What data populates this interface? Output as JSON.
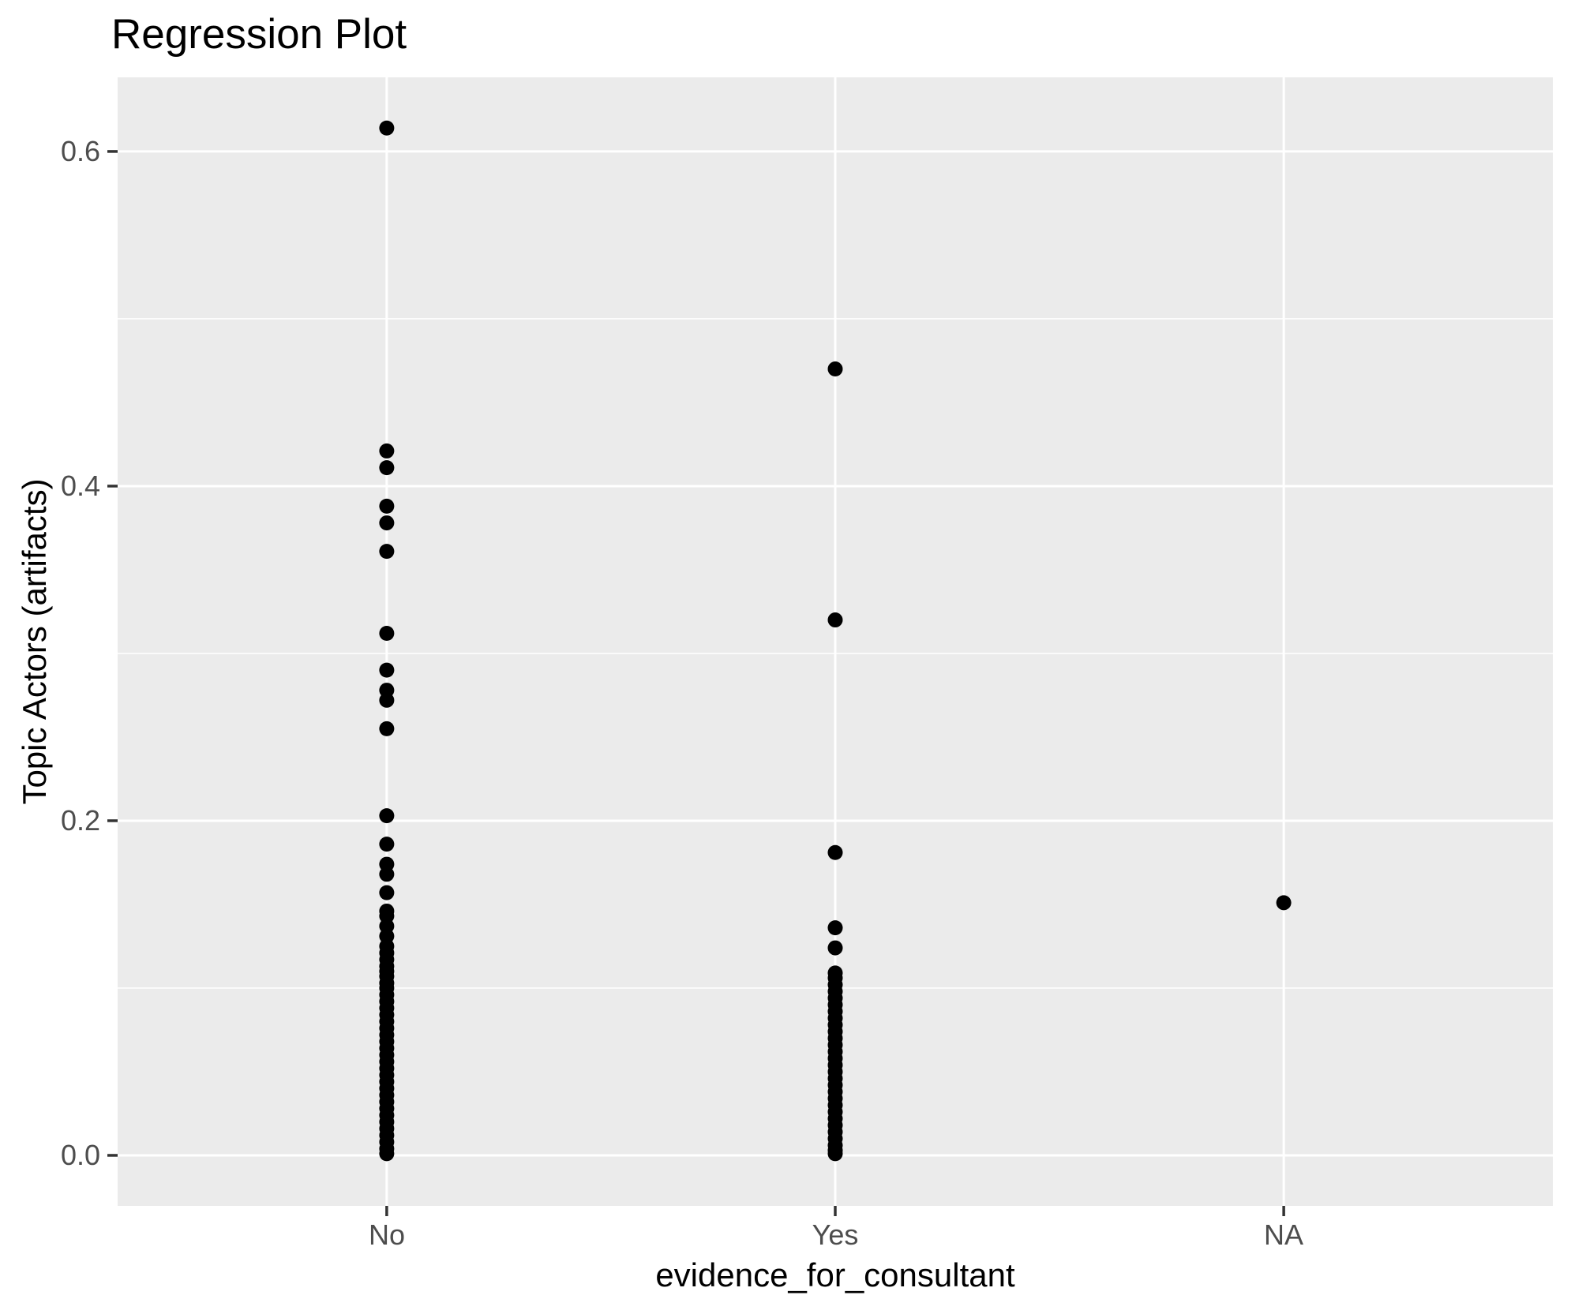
{
  "chart_data": {
    "type": "scatter",
    "title": "Regression Plot",
    "xlabel": "evidence_for_consultant",
    "ylabel": "Topic Actors (artifacts)",
    "categories": [
      "No",
      "Yes",
      "NA"
    ],
    "y_ticks": [
      "0.6",
      "0.4",
      "0.2",
      "0.0"
    ],
    "y_tick_values": [
      0.6,
      0.4,
      0.2,
      0.0
    ],
    "y_minor_values": [
      0.5,
      0.3,
      0.1
    ],
    "ylim": [
      -0.0302,
      0.6443
    ],
    "grid": "major-and-minor",
    "legend": "none",
    "series": [
      {
        "name": "No",
        "values": [
          0.614,
          0.421,
          0.411,
          0.388,
          0.378,
          0.361,
          0.312,
          0.29,
          0.278,
          0.272,
          0.255,
          0.203,
          0.186,
          0.174,
          0.168,
          0.157,
          0.146,
          0.143,
          0.137,
          0.131,
          0.125,
          0.121,
          0.117,
          0.113,
          0.11,
          0.107,
          0.103,
          0.1,
          0.096,
          0.092,
          0.088,
          0.084,
          0.08,
          0.076,
          0.072,
          0.068,
          0.064,
          0.06,
          0.056,
          0.052,
          0.048,
          0.044,
          0.04,
          0.036,
          0.032,
          0.028,
          0.024,
          0.02,
          0.016,
          0.012,
          0.008,
          0.004,
          0.001
        ]
      },
      {
        "name": "Yes",
        "values": [
          0.47,
          0.32,
          0.181,
          0.136,
          0.124,
          0.109,
          0.106,
          0.102,
          0.098,
          0.094,
          0.09,
          0.086,
          0.082,
          0.078,
          0.074,
          0.07,
          0.066,
          0.062,
          0.058,
          0.054,
          0.05,
          0.046,
          0.042,
          0.038,
          0.034,
          0.03,
          0.026,
          0.022,
          0.018,
          0.014,
          0.01,
          0.006,
          0.003,
          0.001
        ]
      },
      {
        "name": "NA",
        "values": [
          0.151
        ]
      }
    ],
    "colors": {
      "page_bg": "#FFFFFF",
      "panel_bg": "#EBEBEB",
      "grid_line": "#FFFFFF",
      "point": "#000000",
      "tick_label": "#4D4D4D",
      "tick_mark": "#333333",
      "title_text": "#000000"
    }
  }
}
